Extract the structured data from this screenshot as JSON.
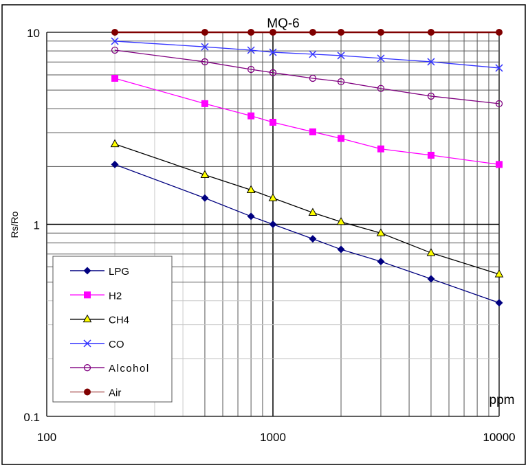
{
  "chart_data": {
    "type": "line",
    "title": "MQ-6",
    "xlabel": "ppm",
    "ylabel": "Rs/Ro",
    "x_scale": "log",
    "y_scale": "log",
    "xlim": [
      100,
      10000
    ],
    "ylim": [
      0.1,
      10
    ],
    "x_ticks": [
      "100",
      "1000",
      "10000"
    ],
    "y_ticks": [
      "0.1",
      "1",
      "10"
    ],
    "grid": true,
    "legend_placement": "bottom-left",
    "x": [
      200,
      500,
      800,
      1000,
      1500,
      2000,
      3000,
      5000,
      10000
    ],
    "series": [
      {
        "name": "LPG",
        "color": "#000080",
        "marker": "diamond",
        "values": [
          2.05,
          1.37,
          1.1,
          1.0,
          0.84,
          0.74,
          0.64,
          0.52,
          0.39
        ]
      },
      {
        "name": "H2",
        "color": "#ff00ff",
        "marker": "square",
        "values": [
          5.76,
          4.25,
          3.67,
          3.4,
          3.03,
          2.8,
          2.47,
          2.29,
          2.05
        ]
      },
      {
        "name": "CH4",
        "color": "#000000",
        "marker": "triangle",
        "values": [
          2.62,
          1.81,
          1.51,
          1.37,
          1.15,
          1.03,
          0.9,
          0.71,
          0.55
        ]
      },
      {
        "name": "CO",
        "color": "#3333ff",
        "marker": "x",
        "values": [
          8.99,
          8.4,
          8.07,
          7.87,
          7.69,
          7.56,
          7.32,
          7.02,
          6.52
        ]
      },
      {
        "name": "Alcohol",
        "color": "#800080",
        "marker": "circle-open",
        "values": [
          8.07,
          7.02,
          6.41,
          6.16,
          5.76,
          5.53,
          5.1,
          4.65,
          4.25
        ]
      },
      {
        "name": "Air",
        "color": "#800000",
        "marker": "circle",
        "values": [
          10,
          10,
          10,
          10,
          10,
          10,
          10,
          10,
          10
        ]
      }
    ]
  }
}
